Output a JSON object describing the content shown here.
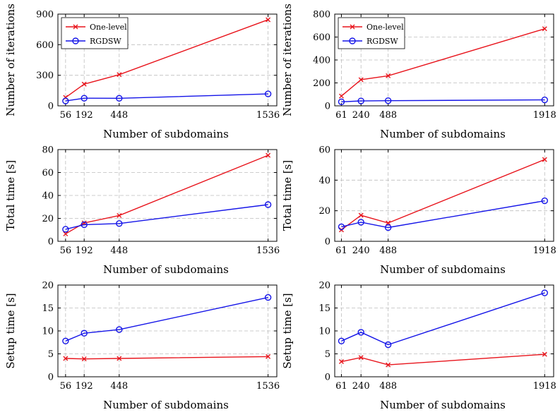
{
  "colors": {
    "one_level": "#e8141c",
    "rgdsw": "#1414e8",
    "grid": "#bdbdbd",
    "axis": "#000000"
  },
  "chart_data": [
    {
      "type": "line",
      "x": [
        56,
        192,
        448,
        1536
      ],
      "xlabel": "Number of subdomains",
      "ylabel": "Number of iterations",
      "ylim": [
        0,
        900
      ],
      "yticks": [
        0,
        300,
        600,
        900
      ],
      "legend": "top-left",
      "grid": true,
      "series": [
        {
          "name": "One-level",
          "marker": "x",
          "values": [
            82,
            213,
            306,
            845
          ]
        },
        {
          "name": "RGDSW",
          "marker": "o",
          "values": [
            48,
            75,
            74,
            117
          ]
        }
      ]
    },
    {
      "type": "line",
      "x": [
        61,
        240,
        488,
        1918
      ],
      "xlabel": "Number of subdomains",
      "ylabel": "Number of iterations",
      "ylim": [
        0,
        800
      ],
      "yticks": [
        0,
        200,
        400,
        600,
        800
      ],
      "legend": "top-left",
      "grid": true,
      "series": [
        {
          "name": "One-level",
          "marker": "x",
          "values": [
            85,
            228,
            262,
            672
          ]
        },
        {
          "name": "RGDSW",
          "marker": "o",
          "values": [
            35,
            43,
            45,
            52
          ]
        }
      ]
    },
    {
      "type": "line",
      "x": [
        56,
        192,
        448,
        1536
      ],
      "xlabel": "Number of subdomains",
      "ylabel": "Total time [s]",
      "ylim": [
        0,
        80
      ],
      "yticks": [
        0,
        20,
        40,
        60,
        80
      ],
      "grid": true,
      "series": [
        {
          "name": "One-level",
          "marker": "x",
          "values": [
            6.5,
            16,
            22.5,
            75
          ]
        },
        {
          "name": "RGDSW",
          "marker": "o",
          "values": [
            10.5,
            14.5,
            15.5,
            32
          ]
        }
      ]
    },
    {
      "type": "line",
      "x": [
        61,
        240,
        488,
        1918
      ],
      "xlabel": "Number of subdomains",
      "ylabel": "Total time [s]",
      "ylim": [
        0,
        60
      ],
      "yticks": [
        0,
        20,
        40,
        60
      ],
      "grid": true,
      "series": [
        {
          "name": "One-level",
          "marker": "x",
          "values": [
            7.5,
            17,
            12,
            53.5
          ]
        },
        {
          "name": "RGDSW",
          "marker": "o",
          "values": [
            9.5,
            12.5,
            9,
            26.5
          ]
        }
      ]
    },
    {
      "type": "line",
      "x": [
        56,
        192,
        448,
        1536
      ],
      "xlabel": "Number of subdomains",
      "ylabel": "Setup time [s]",
      "ylim": [
        0,
        20
      ],
      "yticks": [
        0,
        5,
        10,
        15,
        20
      ],
      "grid": true,
      "series": [
        {
          "name": "One-level",
          "marker": "x",
          "values": [
            4.0,
            3.9,
            4.0,
            4.4
          ]
        },
        {
          "name": "RGDSW",
          "marker": "o",
          "values": [
            7.8,
            9.5,
            10.3,
            17.3
          ]
        }
      ]
    },
    {
      "type": "line",
      "x": [
        61,
        240,
        488,
        1918
      ],
      "xlabel": "Number of subdomains",
      "ylabel": "Setup time [s]",
      "ylim": [
        0,
        20
      ],
      "yticks": [
        0,
        5,
        10,
        15,
        20
      ],
      "grid": true,
      "series": [
        {
          "name": "One-level",
          "marker": "x",
          "values": [
            3.3,
            4.2,
            2.6,
            4.9
          ]
        },
        {
          "name": "RGDSW",
          "marker": "o",
          "values": [
            7.8,
            9.7,
            7.0,
            18.3
          ]
        }
      ]
    }
  ]
}
